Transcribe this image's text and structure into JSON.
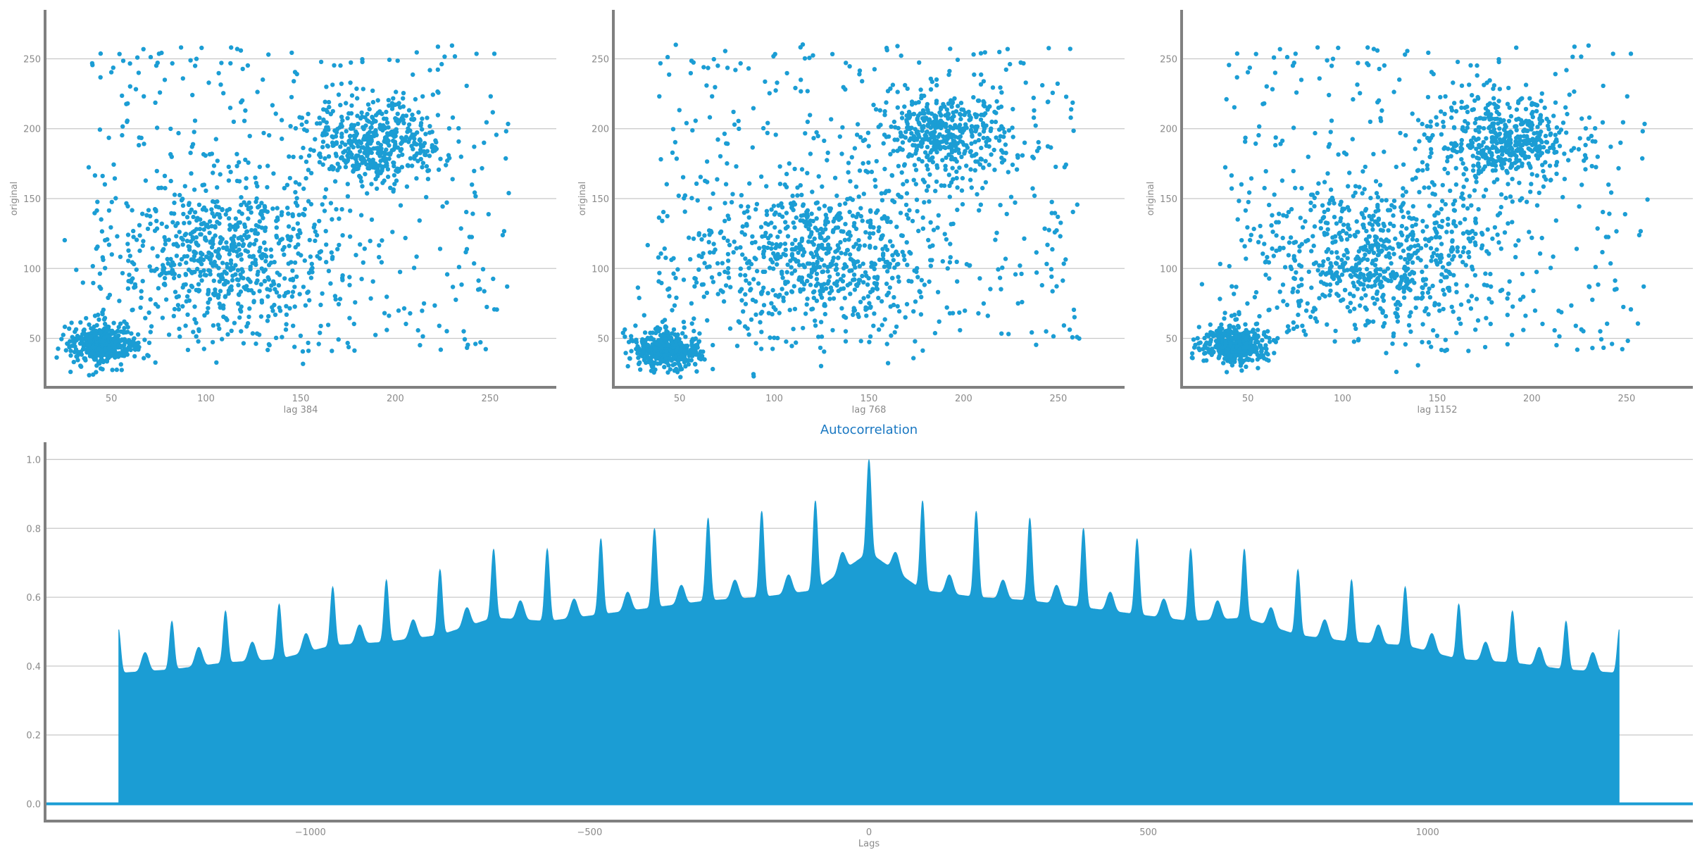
{
  "chart_data": [
    {
      "type": "scatter",
      "xlabel": "lag 384",
      "ylabel": "original",
      "xlim": [
        15,
        285
      ],
      "ylim": [
        15,
        285
      ],
      "xticks": [
        50,
        100,
        150,
        200,
        250
      ],
      "yticks": [
        50,
        100,
        150,
        200,
        250
      ],
      "grid": "horizontal",
      "color": "#1b9dd4",
      "clusters": [
        {
          "center": [
            45,
            45
          ],
          "spread": [
            9,
            7
          ],
          "count": 420
        },
        {
          "center": [
            110,
            110
          ],
          "spread": [
            28,
            28
          ],
          "count": 650
        },
        {
          "center": [
            190,
            190
          ],
          "spread": [
            17,
            15
          ],
          "count": 450
        },
        {
          "center": [
            150,
            150
          ],
          "spread": [
            70,
            65
          ],
          "count": 400
        }
      ]
    },
    {
      "type": "scatter",
      "xlabel": "lag 768",
      "ylabel": "original",
      "xlim": [
        15,
        285
      ],
      "ylim": [
        15,
        285
      ],
      "xticks": [
        50,
        100,
        150,
        200,
        250
      ],
      "yticks": [
        50,
        100,
        150,
        200,
        250
      ],
      "grid": "horizontal",
      "color": "#1b9dd4",
      "clusters": [
        {
          "center": [
            43,
            42
          ],
          "spread": [
            9,
            7
          ],
          "count": 420
        },
        {
          "center": [
            120,
            110
          ],
          "spread": [
            30,
            28
          ],
          "count": 650
        },
        {
          "center": [
            190,
            195
          ],
          "spread": [
            18,
            15
          ],
          "count": 450
        },
        {
          "center": [
            150,
            150
          ],
          "spread": [
            70,
            65
          ],
          "count": 400
        }
      ]
    },
    {
      "type": "scatter",
      "xlabel": "lag 1152",
      "ylabel": "original",
      "xlim": [
        15,
        285
      ],
      "ylim": [
        15,
        285
      ],
      "xticks": [
        50,
        100,
        150,
        200,
        250
      ],
      "yticks": [
        50,
        100,
        150,
        200,
        250
      ],
      "grid": "horizontal",
      "color": "#1b9dd4",
      "clusters": [
        {
          "center": [
            43,
            45
          ],
          "spread": [
            8,
            7
          ],
          "count": 420
        },
        {
          "center": [
            120,
            110
          ],
          "spread": [
            30,
            28
          ],
          "count": 650
        },
        {
          "center": [
            185,
            190
          ],
          "spread": [
            18,
            15
          ],
          "count": 450
        },
        {
          "center": [
            150,
            150
          ],
          "spread": [
            70,
            65
          ],
          "count": 400
        }
      ]
    },
    {
      "type": "area",
      "title": "Autocorrelation",
      "xlabel": "Lags",
      "ylabel": "",
      "xlim": [
        -1475,
        1475
      ],
      "ylim": [
        -0.05,
        1.05
      ],
      "xticks": [
        -1000,
        -500,
        0,
        500,
        1000
      ],
      "xtick_labels": [
        "−1000",
        "−500",
        "0",
        "500",
        "1000"
      ],
      "yticks": [
        0.0,
        0.2,
        0.4,
        0.6,
        0.8,
        1.0
      ],
      "ytick_labels": [
        "0.0",
        "0.2",
        "0.4",
        "0.6",
        "0.8",
        "1.0"
      ],
      "grid": "horizontal",
      "color": "#1b9dd4",
      "max_lag": 1343,
      "period": 96,
      "edge_value": 0.51,
      "center_value": 1.0,
      "major_peaks": [
        {
          "lag": 0,
          "value": 1.0
        },
        {
          "lag": 96,
          "value": 0.88
        },
        {
          "lag": 192,
          "value": 0.85
        },
        {
          "lag": 288,
          "value": 0.83
        },
        {
          "lag": 384,
          "value": 0.8
        },
        {
          "lag": 480,
          "value": 0.77
        },
        {
          "lag": 576,
          "value": 0.74
        },
        {
          "lag": 672,
          "value": 0.74
        },
        {
          "lag": 768,
          "value": 0.68
        },
        {
          "lag": 864,
          "value": 0.65
        },
        {
          "lag": 960,
          "value": 0.63
        },
        {
          "lag": 1056,
          "value": 0.58
        },
        {
          "lag": 1152,
          "value": 0.56
        },
        {
          "lag": 1248,
          "value": 0.53
        },
        {
          "lag": 1343,
          "value": 0.51
        }
      ]
    }
  ]
}
